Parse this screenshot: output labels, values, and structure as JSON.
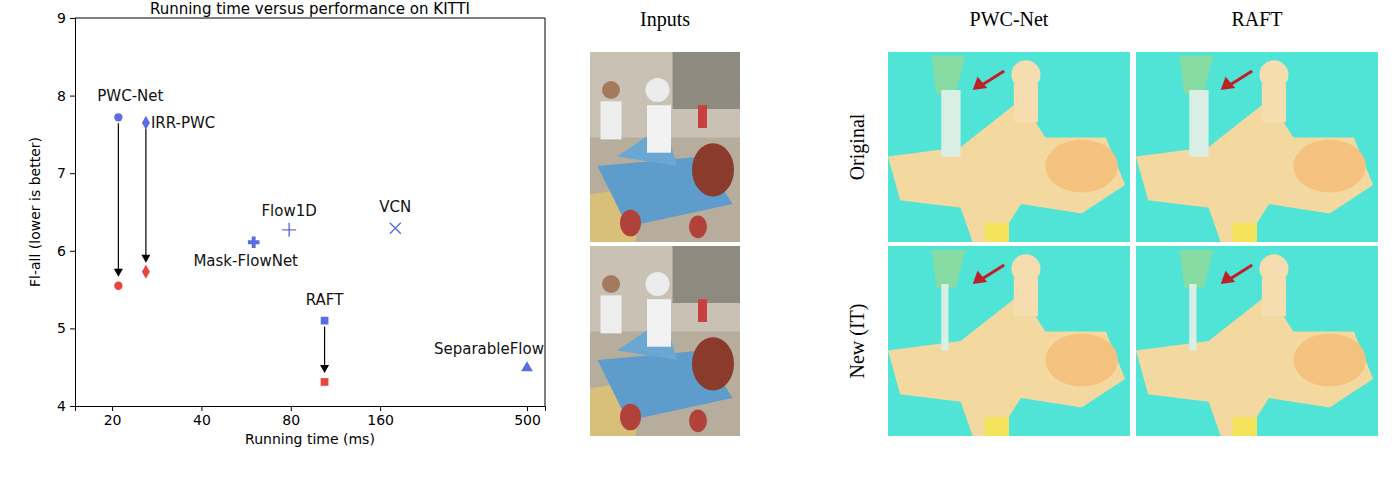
{
  "chart_data": {
    "type": "scatter",
    "title": "Running time versus performance on KITTI",
    "x_label": "Running time (ms)",
    "y_label": "Fl-all (lower is better)",
    "log": "x",
    "grid": false,
    "xlim": [
      15,
      575
    ],
    "ylim": [
      4,
      9
    ],
    "xticks": [
      20,
      40,
      80,
      160,
      500
    ],
    "yticks": [
      4,
      5,
      6,
      7,
      8,
      9
    ],
    "series": [
      {
        "name": "PWC-Net",
        "marker": "circle",
        "x": [
          21,
          21
        ],
        "values": [
          7.72,
          5.55
        ],
        "colors": [
          "#5b6ee1",
          "#e8453c"
        ]
      },
      {
        "name": "IRR-PWC",
        "marker": "diamond",
        "x": [
          26,
          26
        ],
        "values": [
          7.65,
          5.73
        ],
        "colors": [
          "#5b6ee1",
          "#e8453c"
        ]
      },
      {
        "name": "Mask-FlowNet",
        "marker": "plus_filled",
        "x": [
          60
        ],
        "values": [
          6.11
        ],
        "colors": [
          "#5b6ee1"
        ]
      },
      {
        "name": "Flow1D",
        "marker": "plus",
        "x": [
          79
        ],
        "values": [
          6.27
        ],
        "colors": [
          "#5b6ee1"
        ]
      },
      {
        "name": "VCN",
        "marker": "x",
        "x": [
          180
        ],
        "values": [
          6.29
        ],
        "colors": [
          "#5b6ee1"
        ]
      },
      {
        "name": "RAFT",
        "marker": "square",
        "x": [
          104,
          104
        ],
        "values": [
          5.1,
          4.31
        ],
        "colors": [
          "#5b6ee1",
          "#e8453c"
        ]
      },
      {
        "name": "SeparableFlow",
        "marker": "triangle",
        "x": [
          500
        ],
        "values": [
          4.49
        ],
        "colors": [
          "#5b6ee1"
        ]
      }
    ]
  },
  "panels": {
    "columns": [
      "Inputs",
      "PWC-Net",
      "RAFT"
    ],
    "rows": [
      "Original",
      "New (IT)"
    ]
  }
}
